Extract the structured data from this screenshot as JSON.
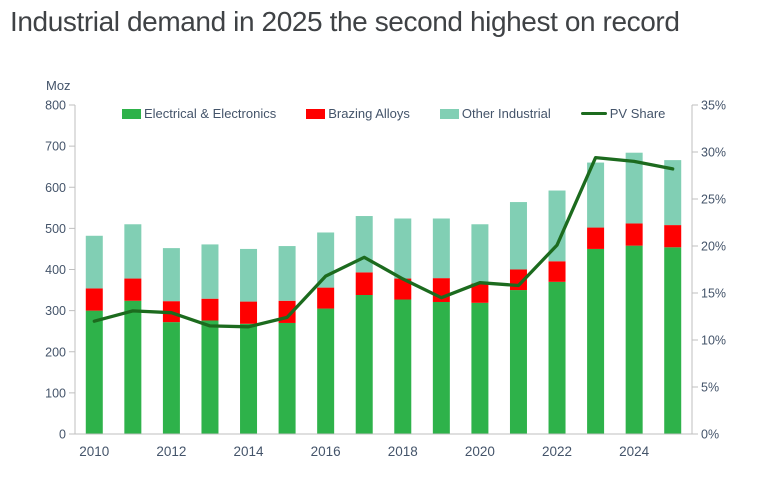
{
  "title": "Industrial demand in 2025 the second highest on record",
  "colors": {
    "electrical": "#2eb24a",
    "brazing": "#ff0000",
    "other": "#81cfb4",
    "pv_line": "#1c6b1e",
    "axis_line": "#bfbfbf",
    "axis_text": "#44546a",
    "title_text": "#3f4245"
  },
  "chart_data": {
    "type": "bar",
    "subtype": "stacked-bars-with-line-overlay",
    "title": "Industrial demand in 2025 the second highest on record",
    "categories": [
      "2010",
      "2011",
      "2012",
      "2013",
      "2014",
      "2015",
      "2016",
      "2017",
      "2018",
      "2019",
      "2020",
      "2021",
      "2022",
      "2023",
      "2024",
      "2025"
    ],
    "series": [
      {
        "name": "Electrical & Electronics",
        "type": "bar",
        "color_key": "electrical",
        "values": [
          300,
          324,
          272,
          276,
          268,
          270,
          305,
          338,
          327,
          321,
          319,
          350,
          370,
          450,
          458,
          454
        ]
      },
      {
        "name": "Brazing Alloys",
        "type": "bar",
        "color_key": "brazing",
        "values": [
          54,
          54,
          51,
          53,
          54,
          54,
          51,
          55,
          51,
          58,
          47,
          50,
          50,
          52,
          54,
          54
        ]
      },
      {
        "name": "Other Industrial",
        "type": "bar",
        "color_key": "other",
        "values": [
          128,
          132,
          129,
          132,
          128,
          133,
          134,
          137,
          146,
          145,
          144,
          164,
          172,
          158,
          172,
          158
        ]
      },
      {
        "name": "PV Share",
        "type": "line",
        "axis": "right",
        "color_key": "pv_line",
        "values": [
          12.0,
          13.1,
          12.9,
          11.5,
          11.4,
          12.4,
          16.8,
          18.8,
          16.5,
          14.5,
          16.1,
          15.8,
          20.1,
          29.4,
          29.0,
          28.2
        ]
      }
    ],
    "stacked_totals": [
      482,
      510,
      452,
      461,
      450,
      457,
      490,
      530,
      524,
      524,
      510,
      564,
      592,
      660,
      684,
      666
    ],
    "left_axis": {
      "label": "Moz",
      "min": 0,
      "max": 800,
      "step": 100
    },
    "right_axis": {
      "min": 0,
      "max": 35,
      "step": 5,
      "suffix": "%"
    },
    "x_tick_labels": [
      "2010",
      "2012",
      "2014",
      "2016",
      "2018",
      "2020",
      "2022",
      "2024"
    ],
    "grid": "off",
    "legend_position": "top-inside"
  },
  "legend": {
    "items": [
      "Electrical & Electronics",
      "Brazing Alloys",
      "Other Industrial",
      "PV Share"
    ]
  }
}
